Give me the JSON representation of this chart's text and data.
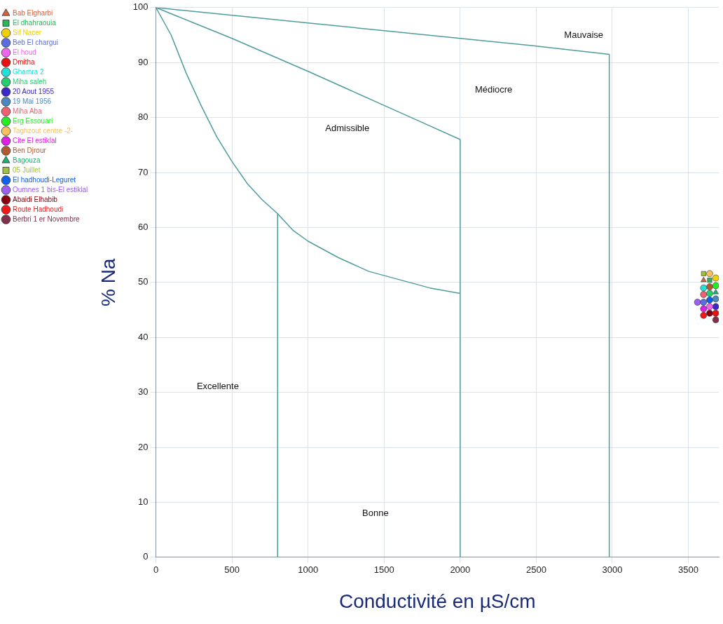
{
  "chart_data": {
    "type": "scatter",
    "xlabel": "Conductivité en µS/cm",
    "ylabel": "% Na",
    "xlim": [
      0,
      3700
    ],
    "ylim": [
      0,
      100
    ],
    "xticks": [
      0,
      500,
      1000,
      1500,
      2000,
      2500,
      3000,
      3500
    ],
    "yticks": [
      0,
      10,
      20,
      30,
      40,
      50,
      60,
      70,
      80,
      90,
      100
    ],
    "grid": true,
    "legend": "left",
    "annotations": [
      "Mauvaise",
      "Médiocre",
      "Admissible",
      "Excellente",
      "Bonne"
    ],
    "series": [
      {
        "type": "line",
        "marker": "none",
        "color": "#4f9c9c",
        "x": [
          0,
          500,
          1000,
          1500,
          2000,
          2500,
          2980,
          2980
        ],
        "values": [
          100,
          98.6,
          97.2,
          95.8,
          94.4,
          93,
          91.5,
          0
        ]
      },
      {
        "type": "line",
        "marker": "none",
        "color": "#4f9c9c",
        "x": [
          0,
          250,
          500,
          750,
          1000,
          1250,
          1500,
          1750,
          2000,
          2000
        ],
        "values": [
          100,
          97.2,
          94.4,
          91.4,
          88.4,
          85.3,
          82.2,
          79.1,
          76,
          0
        ]
      },
      {
        "type": "line",
        "marker": "none",
        "color": "#4f9c9c",
        "x": [
          0,
          100,
          200,
          300,
          400,
          500,
          600,
          700,
          800,
          900,
          1000,
          1200,
          1400,
          1600,
          1800,
          2000
        ],
        "values": [
          100,
          95,
          88,
          82,
          76.5,
          72,
          68,
          65,
          62.5,
          59.5,
          57.5,
          54.5,
          52,
          50.5,
          49,
          48
        ]
      },
      {
        "type": "line",
        "marker": "none",
        "color": "#4f9c9c",
        "x": [
          800,
          800
        ],
        "values": [
          62.5,
          0
        ]
      },
      {
        "name": "Bab Elgharbi",
        "color": "#d9603b",
        "marker": "triangle",
        "x": [
          3600
        ],
        "values": [
          50.4
        ]
      },
      {
        "name": "El dhahraouia",
        "color": "#2db35a",
        "marker": "square",
        "x": [
          3640
        ],
        "values": [
          50.4
        ]
      },
      {
        "name": "Sif Nacer",
        "color": "#f0d000",
        "marker": "circle",
        "x": [
          3680
        ],
        "values": [
          50.8
        ]
      },
      {
        "name": "Beb El chargui",
        "color": "#5a6ee0",
        "marker": "circle",
        "x": [
          3600
        ],
        "values": [
          46.4
        ]
      },
      {
        "name": "El houd",
        "color": "#ee66ee",
        "marker": "circle",
        "x": [
          3640
        ],
        "values": [
          45.6
        ]
      },
      {
        "name": "Dmitha",
        "color": "#e81010",
        "marker": "circle",
        "x": [
          3680
        ],
        "values": [
          44.4
        ]
      },
      {
        "name": "Ghamra 2",
        "color": "#20e0d8",
        "marker": "circle",
        "x": [
          3600
        ],
        "values": [
          49
        ]
      },
      {
        "name": "Miha saleh",
        "color": "#22d070",
        "marker": "circle",
        "x": [
          3640
        ],
        "values": [
          48
        ]
      },
      {
        "name": "20 Aout 1955",
        "color": "#3a28c8",
        "marker": "circle",
        "x": [
          3680
        ],
        "values": [
          45.6
        ]
      },
      {
        "name": "19 Mai 1956",
        "color": "#4a88c0",
        "marker": "circle",
        "x": [
          3680
        ],
        "values": [
          47
        ]
      },
      {
        "name": "Miha Aba",
        "color": "#f06070",
        "marker": "circle",
        "x": [
          3600
        ],
        "values": [
          47.8
        ]
      },
      {
        "name": "Erg Essouari",
        "color": "#22ee22",
        "marker": "circle",
        "x": [
          3680
        ],
        "values": [
          49.4
        ]
      },
      {
        "name": "Taghzout centre -2-",
        "color": "#f8c060",
        "marker": "circle",
        "x": [
          3640
        ],
        "values": [
          51.6
        ]
      },
      {
        "name": "Cite El estiklal",
        "color": "#e020e0",
        "marker": "circle",
        "x": [
          3600
        ],
        "values": [
          45.2
        ]
      },
      {
        "name": "Ben Djrour",
        "color": "#b05a30",
        "marker": "circle",
        "x": [
          3640
        ],
        "values": [
          49.2
        ]
      },
      {
        "name": "Bagouza",
        "color": "#20b070",
        "marker": "triangle",
        "x": [
          3680
        ],
        "values": [
          48.2
        ]
      },
      {
        "name": "05 Juillet",
        "color": "#a0c040",
        "marker": "square",
        "x": [
          3600
        ],
        "values": [
          51.6
        ]
      },
      {
        "name": "El hadhoudi-Leguret",
        "color": "#1060f0",
        "marker": "circle",
        "x": [
          3640
        ],
        "values": [
          46.8
        ]
      },
      {
        "name": "Oumnes 1 bis-El estiklal",
        "color": "#9a60f0",
        "marker": "circle",
        "x": [
          3560
        ],
        "values": [
          46.4
        ]
      },
      {
        "name": "Abaidi Elhabib",
        "color": "#8a0010",
        "marker": "circle",
        "x": [
          3640
        ],
        "values": [
          44.4
        ]
      },
      {
        "name": "Route Hadhoudi",
        "color": "#f01818",
        "marker": "circle",
        "x": [
          3600
        ],
        "values": [
          44
        ]
      },
      {
        "name": "Berbri 1 er Novembre",
        "color": "#80304a",
        "marker": "circle",
        "x": [
          3680
        ],
        "values": [
          43.2
        ]
      }
    ]
  }
}
